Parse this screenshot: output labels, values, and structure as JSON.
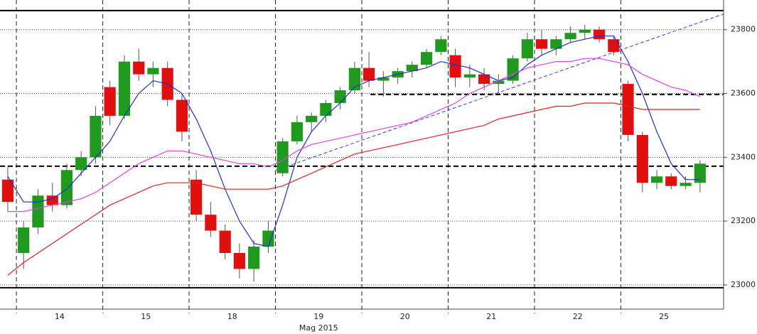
{
  "chart_data": {
    "type": "candlestick",
    "xlim": [
      -0.19,
      8.19
    ],
    "ylim": [
      22924,
      23893
    ],
    "yticks": [
      23000,
      23200,
      23400,
      23600,
      23800
    ],
    "xticks": [
      {
        "value": 0.5,
        "label": "14"
      },
      {
        "value": 1.5,
        "label": "15"
      },
      {
        "value": 2.5,
        "label": "18"
      },
      {
        "value": 3.5,
        "label": "19"
      },
      {
        "value": 4.5,
        "label": "20"
      },
      {
        "value": 5.5,
        "label": "21"
      },
      {
        "value": 6.5,
        "label": "22"
      },
      {
        "value": 7.5,
        "label": "25"
      }
    ],
    "x_label": {
      "value": 3.5,
      "label": "Mag 2015"
    },
    "day_boundaries": [
      0,
      1,
      2,
      3,
      4,
      5,
      6,
      7
    ],
    "grid": true,
    "up_color": "#1f9a1f",
    "down_color": "#e01010",
    "x": [
      -0.1,
      0.083,
      0.25,
      0.417,
      0.583,
      0.75,
      0.917,
      1.083,
      1.25,
      1.417,
      1.583,
      1.75,
      1.917,
      2.083,
      2.25,
      2.417,
      2.583,
      2.75,
      2.917,
      3.083,
      3.25,
      3.417,
      3.583,
      3.75,
      3.917,
      4.083,
      4.25,
      4.417,
      4.583,
      4.75,
      4.917,
      5.083,
      5.25,
      5.417,
      5.583,
      5.75,
      5.917,
      6.083,
      6.25,
      6.417,
      6.583,
      6.75,
      6.917,
      7.083,
      7.25,
      7.417,
      7.583,
      7.75,
      7.917
    ],
    "open": [
      23330,
      23100,
      23180,
      23280,
      23250,
      23360,
      23400,
      23620,
      23530,
      23700,
      23660,
      23680,
      23580,
      23330,
      23220,
      23170,
      23100,
      23050,
      23120,
      23350,
      23450,
      23510,
      23530,
      23570,
      23610,
      23680,
      23640,
      23650,
      23670,
      23690,
      23730,
      23720,
      23650,
      23660,
      23630,
      23640,
      23710,
      23770,
      23740,
      23770,
      23790,
      23800,
      23770,
      23630,
      23470,
      23320,
      23340,
      23310,
      23320
    ],
    "high": [
      23370,
      23200,
      23300,
      23320,
      23380,
      23420,
      23560,
      23640,
      23720,
      23740,
      23700,
      23700,
      23600,
      23360,
      23260,
      23190,
      23130,
      23140,
      23200,
      23460,
      23530,
      23540,
      23580,
      23620,
      23700,
      23730,
      23670,
      23680,
      23700,
      23740,
      23780,
      23740,
      23690,
      23680,
      23660,
      23720,
      23790,
      23800,
      23780,
      23810,
      23815,
      23810,
      23780,
      23640,
      23480,
      23360,
      23350,
      23340,
      23390
    ],
    "low": [
      23230,
      23050,
      23160,
      23230,
      23240,
      23340,
      23380,
      23500,
      23520,
      23640,
      23620,
      23560,
      23450,
      23200,
      23150,
      23080,
      23020,
      23010,
      23100,
      23340,
      23440,
      23480,
      23510,
      23550,
      23600,
      23620,
      23590,
      23630,
      23650,
      23680,
      23720,
      23620,
      23620,
      23610,
      23600,
      23630,
      23700,
      23720,
      23720,
      23760,
      23770,
      23760,
      23720,
      23450,
      23290,
      23300,
      23300,
      23300,
      23290
    ],
    "close": [
      23260,
      23180,
      23280,
      23250,
      23360,
      23400,
      23530,
      23530,
      23700,
      23660,
      23680,
      23580,
      23480,
      23220,
      23170,
      23100,
      23050,
      23120,
      23170,
      23450,
      23510,
      23530,
      23570,
      23610,
      23680,
      23640,
      23650,
      23670,
      23690,
      23730,
      23770,
      23650,
      23660,
      23630,
      23640,
      23710,
      23770,
      23740,
      23770,
      23790,
      23800,
      23770,
      23730,
      23470,
      23320,
      23340,
      23310,
      23320,
      23380
    ],
    "series": [
      {
        "color": "#2030c0",
        "values": [
          23340,
          23260,
          23260,
          23270,
          23300,
          23350,
          23400,
          23450,
          23530,
          23600,
          23640,
          23630,
          23600,
          23520,
          23420,
          23300,
          23200,
          23130,
          23120,
          23250,
          23400,
          23480,
          23530,
          23570,
          23620,
          23640,
          23650,
          23660,
          23670,
          23680,
          23700,
          23690,
          23680,
          23660,
          23640,
          23650,
          23690,
          23720,
          23740,
          23760,
          23770,
          23780,
          23780,
          23700,
          23600,
          23480,
          23380,
          23330,
          23330
        ]
      },
      {
        "color": "#e040e0",
        "values": [
          23230,
          23230,
          23240,
          23250,
          23260,
          23270,
          23290,
          23320,
          23350,
          23380,
          23400,
          23420,
          23420,
          23410,
          23400,
          23390,
          23380,
          23380,
          23370,
          23390,
          23420,
          23440,
          23450,
          23460,
          23470,
          23480,
          23490,
          23500,
          23510,
          23530,
          23550,
          23570,
          23600,
          23620,
          23640,
          23660,
          23680,
          23690,
          23700,
          23700,
          23710,
          23710,
          23700,
          23690,
          23660,
          23640,
          23620,
          23610,
          23590
        ]
      },
      {
        "color": "#e02020",
        "values": [
          23030,
          23070,
          23100,
          23130,
          23160,
          23190,
          23220,
          23250,
          23270,
          23290,
          23310,
          23320,
          23320,
          23320,
          23310,
          23300,
          23300,
          23300,
          23300,
          23310,
          23330,
          23350,
          23370,
          23390,
          23410,
          23420,
          23430,
          23440,
          23450,
          23460,
          23470,
          23480,
          23490,
          23500,
          23520,
          23530,
          23540,
          23550,
          23560,
          23560,
          23570,
          23570,
          23570,
          23560,
          23550,
          23550,
          23550,
          23550,
          23550
        ]
      }
    ],
    "trendline": {
      "color": "#3040d0",
      "x": [
        3.0,
        8.19
      ],
      "values": [
        23359,
        23849
      ]
    },
    "hlines": [
      {
        "value": 23860,
        "style": "solid",
        "from": -0.19
      },
      {
        "value": 22991,
        "style": "solid",
        "from": -0.19
      },
      {
        "value": 23372,
        "style": "dashed",
        "from": -0.19
      },
      {
        "value": 23597,
        "style": "dashed",
        "from": 4.1
      }
    ]
  }
}
